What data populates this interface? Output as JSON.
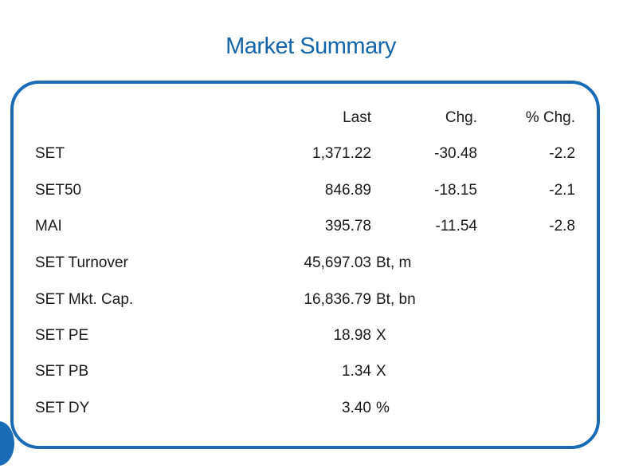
{
  "title": "Market Summary",
  "columns": {
    "last": "Last",
    "chg": "Chg.",
    "pct_chg": "% Chg."
  },
  "rows": [
    {
      "name": "SET",
      "last": "1,371.22",
      "unit": "",
      "chg": "-30.48",
      "pct_chg": "-2.2"
    },
    {
      "name": "SET50",
      "last": "846.89",
      "unit": "",
      "chg": "-18.15",
      "pct_chg": "-2.1"
    },
    {
      "name": "MAI",
      "last": "395.78",
      "unit": "",
      "chg": "-11.54",
      "pct_chg": "-2.8"
    },
    {
      "name": "SET Turnover",
      "last": "45,697.03",
      "unit": "Bt, m",
      "chg": "",
      "pct_chg": ""
    },
    {
      "name": "SET Mkt. Cap.",
      "last": "16,836.79",
      "unit": "Bt, bn",
      "chg": "",
      "pct_chg": ""
    },
    {
      "name": "SET PE",
      "last": "18.98",
      "unit": "X",
      "chg": "",
      "pct_chg": ""
    },
    {
      "name": "SET PB",
      "last": "1.34",
      "unit": "X",
      "chg": "",
      "pct_chg": ""
    },
    {
      "name": "SET DY",
      "last": "3.40",
      "unit": "%",
      "chg": "",
      "pct_chg": ""
    }
  ],
  "colors": {
    "accent": "#1a6bb5",
    "title": "#1565a8"
  }
}
